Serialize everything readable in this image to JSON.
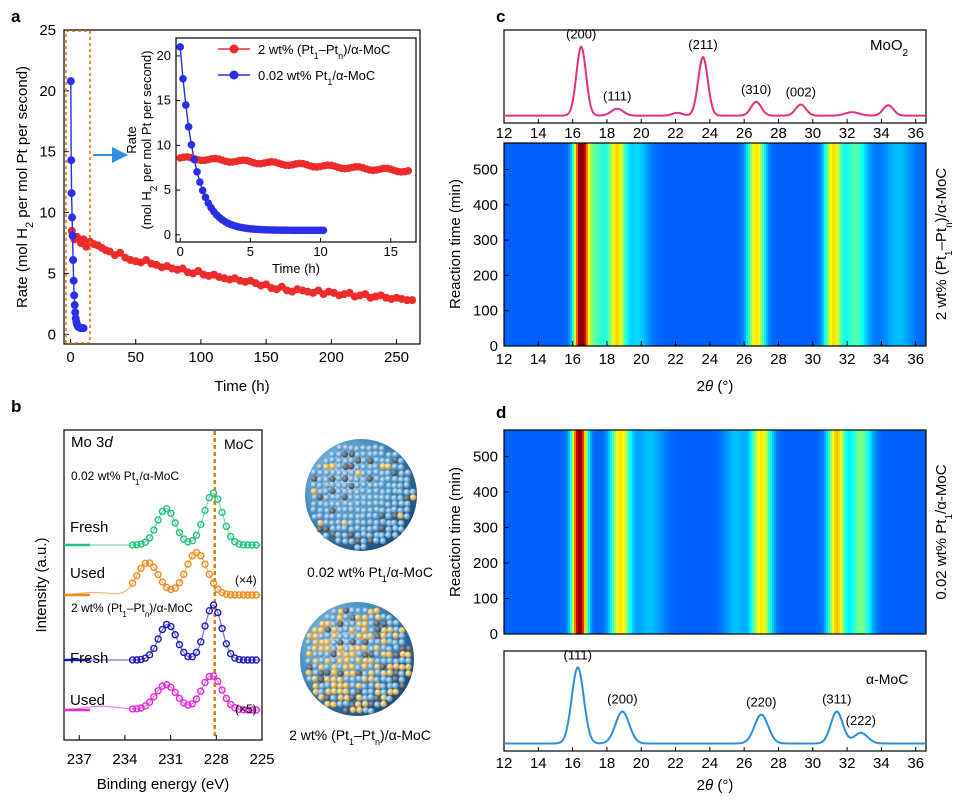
{
  "panels": {
    "a": "a",
    "b": "b",
    "c": "c",
    "d": "d"
  },
  "colors": {
    "pt_cluster": "#ee2b2b",
    "pt_single": "#2a2ee6",
    "xrd_c": "#e6307a",
    "xrd_d": "#2b8fe0",
    "dash_box": "#e07a10",
    "arrow": "#2f8fe0",
    "xps_fresh_single": "#22c47a",
    "xps_used_single": "#f08a1a",
    "xps_fresh_cluster": "#1a1ab8",
    "xps_used_cluster": "#e22bd6"
  },
  "chart_data": [
    {
      "id": "a-main",
      "type": "scatter",
      "xlabel": "Time (h)",
      "ylabel_parts": {
        "pre": "Rate (mol H",
        "sub": "2",
        "post": " per mol Pt per second)"
      },
      "xlim": [
        -5,
        268
      ],
      "ylim": [
        -0.8,
        25
      ],
      "xticks": [
        0,
        50,
        100,
        150,
        200,
        250
      ],
      "yticks": [
        0,
        5,
        10,
        15,
        20,
        25
      ],
      "series": [
        {
          "name": "2 wt% (Pt1-Ptn)/α-MoC",
          "x": [
            1,
            3,
            5,
            8,
            10,
            12,
            15,
            18,
            21,
            24,
            27,
            30,
            34,
            38,
            42,
            46,
            50,
            54,
            58,
            62,
            66,
            70,
            74,
            78,
            82,
            86,
            90,
            94,
            98,
            102,
            106,
            110,
            114,
            118,
            122,
            126,
            130,
            134,
            138,
            142,
            146,
            150,
            154,
            158,
            162,
            166,
            170,
            174,
            178,
            182,
            186,
            190,
            194,
            198,
            202,
            206,
            210,
            214,
            218,
            222,
            226,
            230,
            234,
            238,
            242,
            246,
            250,
            254,
            258,
            262
          ],
          "y": [
            8.5,
            7.8,
            8.0,
            7.5,
            7.8,
            7.2,
            7.6,
            7.4,
            7.3,
            7.1,
            6.9,
            6.8,
            6.5,
            6.7,
            6.3,
            6.1,
            6.0,
            5.9,
            6.1,
            5.8,
            5.7,
            5.5,
            5.6,
            5.4,
            5.3,
            5.4,
            5.1,
            5.0,
            5.2,
            4.9,
            4.8,
            4.9,
            4.7,
            4.6,
            4.5,
            4.6,
            4.4,
            4.3,
            4.4,
            4.2,
            4.0,
            4.1,
            3.8,
            3.7,
            3.9,
            3.6,
            3.5,
            3.7,
            3.6,
            3.5,
            3.4,
            3.6,
            3.3,
            3.5,
            3.4,
            3.2,
            3.3,
            3.4,
            3.1,
            3.2,
            3.3,
            3.0,
            3.1,
            3.2,
            3.0,
            2.9,
            3.0,
            2.9,
            2.8,
            2.8
          ]
        },
        {
          "name": "0.02 wt% Pt1/α-MoC",
          "x": [
            0.2,
            0.5,
            0.8,
            1.2,
            1.6,
            2.0,
            2.4,
            2.8,
            3.2,
            3.6,
            4.0,
            4.5,
            5.0,
            5.5,
            6.0,
            7.0,
            8.0,
            9.0,
            10.0
          ],
          "y": [
            20.8,
            14.3,
            11.6,
            9.6,
            8.1,
            6.1,
            4.4,
            3.2,
            2.4,
            1.8,
            1.3,
            1.0,
            0.8,
            0.7,
            0.6,
            0.55,
            0.5,
            0.5,
            0.5
          ]
        }
      ]
    },
    {
      "id": "a-inset",
      "type": "scatter",
      "xlabel": "Time (h)",
      "ylabel_parts": {
        "line1": "Rate",
        "pre": "(mol H",
        "sub": "2",
        "post": " per mol Pt per second)"
      },
      "xlim": [
        -0.3,
        16.8
      ],
      "ylim": [
        -0.8,
        22
      ],
      "xticks": [
        0,
        5,
        10,
        15
      ],
      "yticks": [
        0,
        5,
        10,
        15,
        20
      ],
      "legend": [
        {
          "label_pre": "2 wt% (Pt",
          "label_sub1": "1",
          "label_mid": "–Pt",
          "label_sub2": "n",
          "label_post": ")/α-MoC",
          "color": "#ee2b2b"
        },
        {
          "label_pre": "0.02 wt% Pt",
          "label_sub1": "1",
          "label_mid": "/α-MoC",
          "label_sub2": "",
          "label_post": "",
          "color": "#2a2ee6"
        }
      ],
      "series_names": [
        "2 wt% (Pt1-Ptn)/α-MoC",
        "0.02 wt% Pt1/α-MoC"
      ]
    },
    {
      "id": "c-top",
      "type": "line",
      "title": "MoO2",
      "title_parts": {
        "pre": "MoO",
        "sub": "2"
      },
      "xlim": [
        12,
        36.6
      ],
      "xticks": [
        12,
        14,
        16,
        18,
        20,
        22,
        24,
        26,
        28,
        30,
        32,
        34,
        36
      ],
      "peaks": [
        {
          "x": 16.5,
          "h": 1.0,
          "w": 0.28,
          "label": "(200)"
        },
        {
          "x": 18.6,
          "h": 0.1,
          "w": 0.35,
          "label": "(111)"
        },
        {
          "x": 23.6,
          "h": 0.85,
          "w": 0.28,
          "label": "(211)"
        },
        {
          "x": 26.7,
          "h": 0.2,
          "w": 0.3,
          "label": "(310)"
        },
        {
          "x": 29.3,
          "h": 0.16,
          "w": 0.3,
          "label": "(002)"
        },
        {
          "x": 34.4,
          "h": 0.15,
          "w": 0.3,
          "label": ""
        },
        {
          "x": 22.1,
          "h": 0.04,
          "w": 0.3,
          "label": ""
        },
        {
          "x": 32.3,
          "h": 0.05,
          "w": 0.4,
          "label": ""
        }
      ]
    },
    {
      "id": "c-map",
      "type": "heatmap",
      "xlabel": "2θ (°)",
      "ylabel": "Reaction time (min)",
      "side_label_parts": {
        "pre": "2 wt% (Pt",
        "sub1": "1",
        "mid": "–Pt",
        "sub2": "n",
        "post": ")/α-MoC"
      },
      "xlim": [
        12,
        36.6
      ],
      "ylim": [
        0,
        575
      ],
      "xticks": [
        12,
        14,
        16,
        18,
        20,
        22,
        24,
        26,
        28,
        30,
        32,
        34,
        36
      ],
      "yticks": [
        0,
        100,
        200,
        300,
        400,
        500
      ],
      "bands": [
        {
          "x": 16.5,
          "w": 0.28,
          "amp": 1.0
        },
        {
          "x": 18.6,
          "w": 0.35,
          "amp": 0.55
        },
        {
          "x": 17.3,
          "w": 0.55,
          "amp": 0.3
        },
        {
          "x": 26.7,
          "w": 0.35,
          "amp": 0.55
        },
        {
          "x": 31.2,
          "w": 0.35,
          "amp": 0.55
        },
        {
          "x": 32.5,
          "w": 0.5,
          "amp": 0.3
        },
        {
          "x": 19.8,
          "w": 0.5,
          "amp": 0.15
        },
        {
          "x": 35.0,
          "w": 0.6,
          "amp": 0.12
        }
      ]
    },
    {
      "id": "d-map",
      "type": "heatmap",
      "ylabel": "Reaction time (min)",
      "side_label_parts": {
        "pre": "0.02 wt% Pt",
        "sub1": "1",
        "mid": "/α-MoC",
        "sub2": "",
        "post": ""
      },
      "xlim": [
        12,
        36.6
      ],
      "ylim": [
        0,
        575
      ],
      "yticks": [
        0,
        100,
        200,
        300,
        400,
        500
      ],
      "bands": [
        {
          "x": 16.4,
          "w": 0.3,
          "amp": 1.0
        },
        {
          "x": 18.8,
          "w": 0.4,
          "amp": 0.55
        },
        {
          "x": 27.0,
          "w": 0.4,
          "amp": 0.55
        },
        {
          "x": 31.4,
          "w": 0.35,
          "amp": 0.6
        },
        {
          "x": 32.8,
          "w": 0.45,
          "amp": 0.35
        },
        {
          "x": 20.5,
          "w": 0.6,
          "amp": 0.12
        },
        {
          "x": 25.5,
          "w": 0.5,
          "amp": 0.12
        }
      ]
    },
    {
      "id": "d-bottom",
      "type": "line",
      "title": "α-MoC",
      "xlabel": "2θ (°)",
      "xlim": [
        12,
        36.6
      ],
      "xticks": [
        12,
        14,
        16,
        18,
        20,
        22,
        24,
        26,
        28,
        30,
        32,
        34,
        36
      ],
      "peaks": [
        {
          "x": 16.3,
          "h": 1.0,
          "w": 0.35,
          "label": "(111)"
        },
        {
          "x": 18.9,
          "h": 0.42,
          "w": 0.4,
          "label": "(200)"
        },
        {
          "x": 27.0,
          "h": 0.38,
          "w": 0.4,
          "label": "(220)"
        },
        {
          "x": 31.4,
          "h": 0.42,
          "w": 0.35,
          "label": "(311)"
        },
        {
          "x": 32.8,
          "h": 0.14,
          "w": 0.4,
          "label": "(222)"
        }
      ]
    },
    {
      "id": "b-xps",
      "type": "line",
      "title_parts": {
        "pre": "Mo 3",
        "it": "d"
      },
      "xlabel": "Binding energy (eV)",
      "ylabel": "Intensity (a.u.)",
      "xlim": [
        238,
        225
      ],
      "xticks": [
        237,
        234,
        231,
        228,
        225
      ],
      "ref_line": {
        "x": 228.1,
        "label": "MoC"
      },
      "group_labels": [
        {
          "pre": "0.02 wt% Pt",
          "sub1": "1",
          "mid": "/α-MoC",
          "sub2": "",
          "post": ""
        },
        {
          "pre": "2 wt% (Pt",
          "sub1": "1",
          "mid": "–Pt",
          "sub2": "n",
          "post": ")/α-MoC"
        }
      ],
      "series": [
        {
          "name": "Fresh",
          "group": 0,
          "mult": "",
          "peaks": [
            {
              "x": 228.2,
              "h": 1.0,
              "w": 0.6
            },
            {
              "x": 231.3,
              "h": 0.7,
              "w": 0.6
            }
          ]
        },
        {
          "name": "Used",
          "group": 0,
          "mult": "(×4)",
          "peaks": [
            {
              "x": 229.3,
              "h": 0.85,
              "w": 0.7
            },
            {
              "x": 232.5,
              "h": 0.65,
              "w": 0.7
            },
            {
              "x": 236.0,
              "h": 0.05,
              "w": 1.0
            }
          ]
        },
        {
          "name": "Fresh",
          "group": 1,
          "mult": "",
          "peaks": [
            {
              "x": 228.2,
              "h": 1.0,
              "w": 0.55
            },
            {
              "x": 231.2,
              "h": 0.65,
              "w": 0.6
            }
          ]
        },
        {
          "name": "Used",
          "group": 1,
          "mult": "(×5)",
          "peaks": [
            {
              "x": 228.3,
              "h": 0.75,
              "w": 0.65
            },
            {
              "x": 231.3,
              "h": 0.55,
              "w": 0.7
            },
            {
              "x": 235.5,
              "h": 0.08,
              "w": 1.2
            }
          ]
        }
      ]
    }
  ],
  "models": [
    {
      "pre": "0.02 wt% Pt",
      "sub1": "1",
      "mid": "/α-MoC",
      "sub2": "",
      "post": ""
    },
    {
      "pre": "2 wt% (Pt",
      "sub1": "1",
      "mid": "–Pt",
      "sub2": "n",
      "post": ")/α-MoC"
    }
  ]
}
